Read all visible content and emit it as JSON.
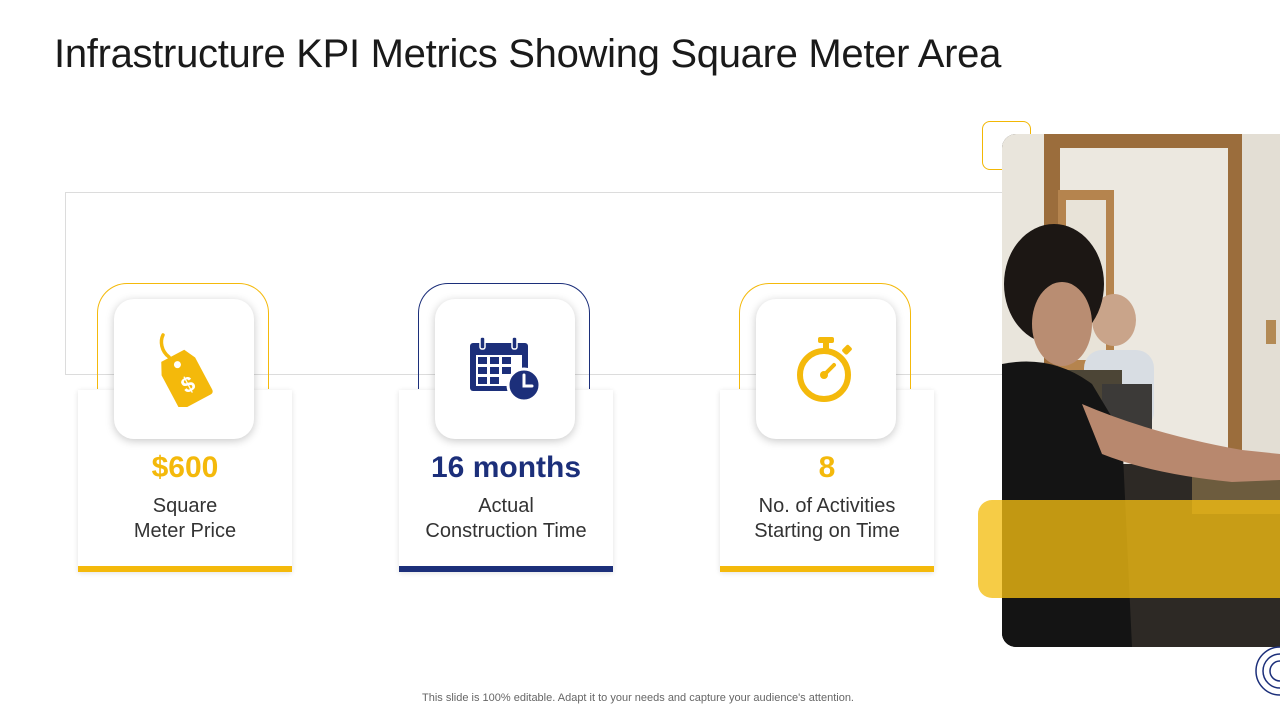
{
  "slide": {
    "title": "Infrastructure KPI Metrics Showing Square Meter Area",
    "footer": "This slide is 100% editable. Adapt it to your needs and capture your audience's attention."
  },
  "colors": {
    "yellow": "#f4b90b",
    "navy": "#1c2f7a"
  },
  "kpis": [
    {
      "value": "$600",
      "label_line1": "Square",
      "label_line2": "Meter Price",
      "icon": "price-tag-dollar-icon",
      "accent": "#f4b90b"
    },
    {
      "value": "16 months",
      "label_line1": "Actual",
      "label_line2": "Construction Time",
      "icon": "calendar-clock-icon",
      "accent": "#1c2f7a"
    },
    {
      "value": "8",
      "label_line1": "No. of Activities",
      "label_line2": "Starting on Time",
      "icon": "stopwatch-icon",
      "accent": "#f4b90b"
    }
  ]
}
